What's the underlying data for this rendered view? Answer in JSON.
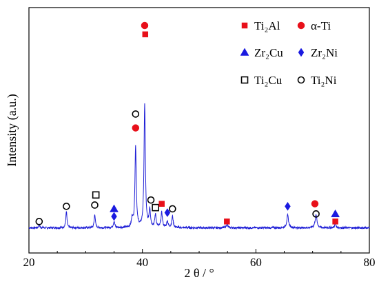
{
  "chart_data": {
    "type": "line",
    "xlabel": "2 θ / °",
    "ylabel": "Intensity (a.u.)",
    "xlim": [
      20,
      80
    ],
    "x_ticks": [
      20,
      40,
      60,
      80
    ],
    "y_ticks_shown": false,
    "grid": false,
    "legend_position": "top-right",
    "line_color": "#1f1fd6",
    "pattern": {
      "baseline": 3,
      "noise": 0.8,
      "peaks": [
        {
          "x": 21.8,
          "h": 2.5,
          "w": 0.12
        },
        {
          "x": 26.6,
          "h": 13,
          "w": 0.12
        },
        {
          "x": 31.6,
          "h": 11,
          "w": 0.12
        },
        {
          "x": 35.0,
          "h": 5,
          "w": 0.15
        },
        {
          "x": 38.2,
          "h": 7,
          "w": 0.15
        },
        {
          "x": 38.8,
          "h": 64,
          "w": 0.14
        },
        {
          "x": 40.4,
          "h": 97,
          "w": 0.14
        },
        {
          "x": 41.3,
          "h": 14,
          "w": 0.15
        },
        {
          "x": 42.3,
          "h": 10,
          "w": 0.15
        },
        {
          "x": 43.4,
          "h": 12,
          "w": 0.15
        },
        {
          "x": 44.4,
          "h": 5,
          "w": 0.15
        },
        {
          "x": 45.3,
          "h": 9,
          "w": 0.15
        },
        {
          "x": 54.9,
          "h": 3,
          "w": 0.15
        },
        {
          "x": 65.6,
          "h": 10,
          "w": 0.18
        },
        {
          "x": 70.6,
          "h": 10,
          "w": 0.2
        },
        {
          "x": 74.0,
          "h": 3,
          "w": 0.15
        }
      ]
    },
    "phases": [
      {
        "name": "Ti2Al",
        "label": "Ti₂Al",
        "shape": "square",
        "color": "#e8101a",
        "filled": true
      },
      {
        "name": "α-Ti",
        "label": "α-Ti",
        "shape": "circle",
        "color": "#e8101a",
        "filled": true
      },
      {
        "name": "Zr2Cu",
        "label": "Zr₂Cu",
        "shape": "triangle",
        "color": "#1a1ae0",
        "filled": true
      },
      {
        "name": "Zr2Ni",
        "label": "Zr₂Ni",
        "shape": "diamond",
        "color": "#1a1ae0",
        "filled": true
      },
      {
        "name": "Ti2Cu",
        "label": "Ti₂Cu",
        "shape": "square",
        "color": "#000000",
        "filled": false
      },
      {
        "name": "Ti2Ni",
        "label": "Ti₂Ni",
        "shape": "circle",
        "color": "#000000",
        "filled": false
      }
    ],
    "peak_markers": [
      {
        "phase": "Ti2Ni",
        "x": 21.8,
        "y": 8
      },
      {
        "phase": "Ti2Ni",
        "x": 26.6,
        "y": 20
      },
      {
        "phase": "Ti2Ni",
        "x": 31.6,
        "y": 21
      },
      {
        "phase": "Ti2Cu",
        "x": 31.8,
        "y": 29
      },
      {
        "phase": "Zr2Cu",
        "x": 35.0,
        "y": 18
      },
      {
        "phase": "Zr2Ni",
        "x": 35.0,
        "y": 12
      },
      {
        "phase": "α-Ti",
        "x": 38.8,
        "y": 82
      },
      {
        "phase": "Ti2Ni",
        "x": 38.8,
        "y": 93
      },
      {
        "phase": "Ti2Al",
        "x": 40.5,
        "y": 156
      },
      {
        "phase": "α-Ti",
        "x": 40.4,
        "y": 163
      },
      {
        "phase": "Ti2Ni",
        "x": 41.5,
        "y": 25
      },
      {
        "phase": "Ti2Cu",
        "x": 42.3,
        "y": 19
      },
      {
        "phase": "Ti2Al",
        "x": 43.4,
        "y": 22
      },
      {
        "phase": "Zr2Ni",
        "x": 44.4,
        "y": 15
      },
      {
        "phase": "Ti2Ni",
        "x": 45.3,
        "y": 18
      },
      {
        "phase": "Ti2Al",
        "x": 54.9,
        "y": 8
      },
      {
        "phase": "Zr2Ni",
        "x": 65.6,
        "y": 20
      },
      {
        "phase": "α-Ti",
        "x": 70.4,
        "y": 22
      },
      {
        "phase": "Ti2Ni",
        "x": 70.6,
        "y": 14
      },
      {
        "phase": "Zr2Cu",
        "x": 74.0,
        "y": 14
      },
      {
        "phase": "Ti2Al",
        "x": 74.0,
        "y": 8
      }
    ]
  }
}
